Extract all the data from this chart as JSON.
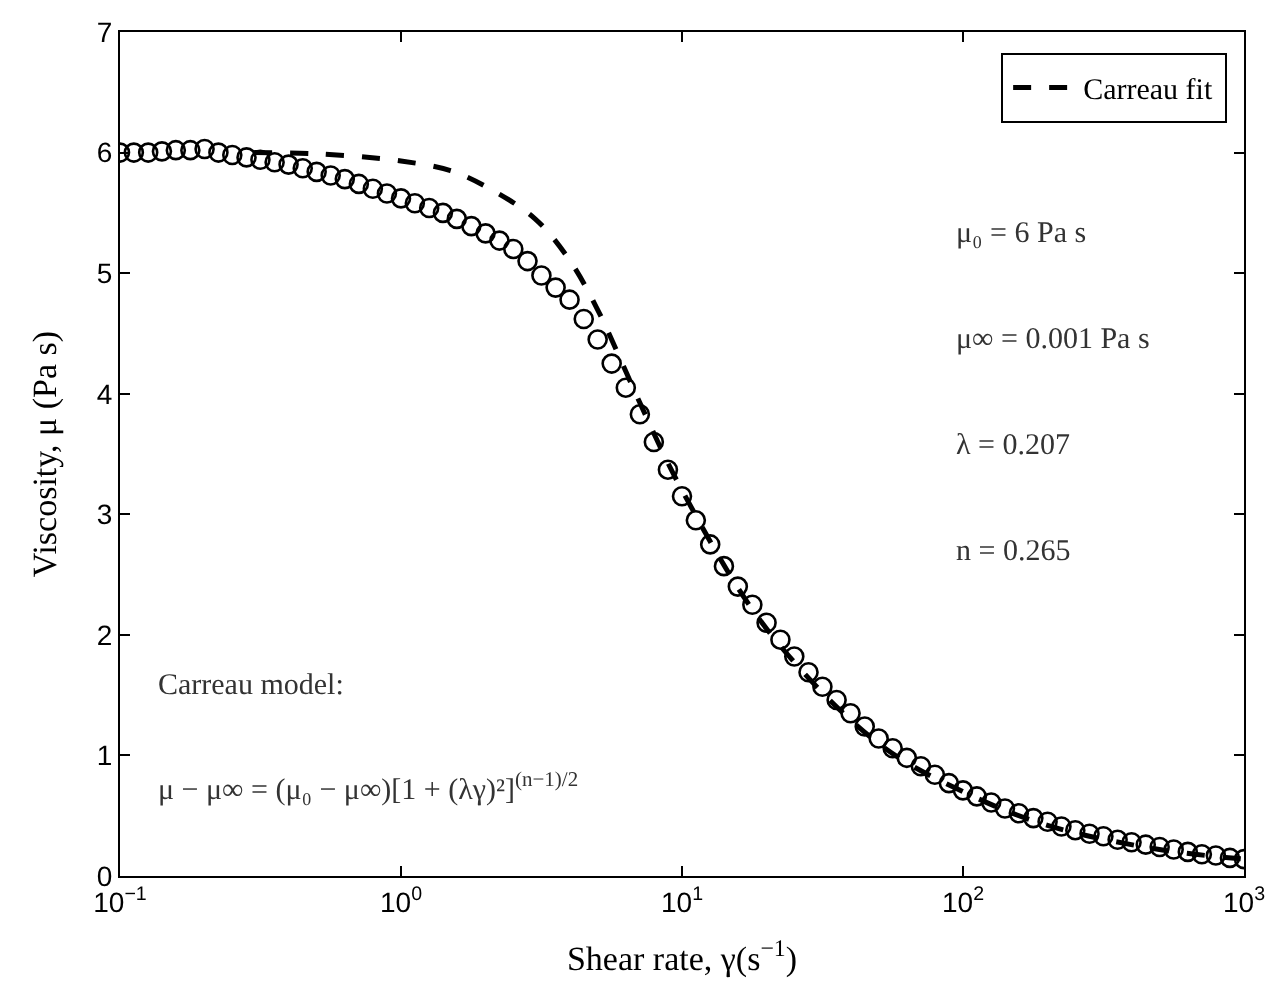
{
  "chart_data": {
    "type": "scatter",
    "xlabel": "Shear rate, γ(s$^{−1}$)",
    "ylabel": "Viscosity, μ (Pa s)",
    "log": "x",
    "xlim": [
      0.1,
      1000
    ],
    "xticks": [
      {
        "value": 0.1,
        "label": "10$^{−1}$"
      },
      {
        "value": 1,
        "label": "10$^{0}$"
      },
      {
        "value": 10,
        "label": "10$^{1}$"
      },
      {
        "value": 100,
        "label": "10$^{2}$"
      },
      {
        "value": 1000,
        "label": "10$^{3}$"
      }
    ],
    "ylim": [
      0,
      7
    ],
    "yticks": [
      0,
      1,
      2,
      3,
      4,
      5,
      6,
      7
    ],
    "legend": "top right",
    "series": [
      {
        "marker": "circle",
        "color": "#000000",
        "x": [
          0.1,
          0.112,
          0.126,
          0.141,
          0.158,
          0.178,
          0.2,
          0.224,
          0.251,
          0.282,
          0.316,
          0.355,
          0.398,
          0.447,
          0.501,
          0.562,
          0.631,
          0.708,
          0.794,
          0.891,
          1,
          1.12,
          1.26,
          1.41,
          1.58,
          1.78,
          2,
          2.24,
          2.51,
          2.82,
          3.16,
          3.55,
          3.98,
          4.47,
          5.01,
          5.62,
          6.31,
          7.08,
          7.94,
          8.91,
          10,
          11.2,
          12.6,
          14.1,
          15.8,
          17.8,
          20,
          22.4,
          25.1,
          28.2,
          31.6,
          35.5,
          39.8,
          44.7,
          50.1,
          56.2,
          63.1,
          70.8,
          79.4,
          89.1,
          100,
          112,
          126,
          141,
          158,
          178,
          200,
          224,
          251,
          282,
          316,
          355,
          398,
          447,
          501,
          562,
          631,
          708,
          794,
          891,
          1000
        ],
        "values": [
          6.0,
          6.0,
          6.0,
          6.01,
          6.02,
          6.02,
          6.03,
          6.0,
          5.98,
          5.96,
          5.94,
          5.92,
          5.9,
          5.87,
          5.84,
          5.81,
          5.78,
          5.74,
          5.7,
          5.66,
          5.62,
          5.58,
          5.54,
          5.5,
          5.45,
          5.39,
          5.33,
          5.27,
          5.2,
          5.1,
          4.98,
          4.88,
          4.78,
          4.62,
          4.45,
          4.25,
          4.05,
          3.83,
          3.6,
          3.37,
          3.15,
          2.95,
          2.75,
          2.57,
          2.4,
          2.25,
          2.1,
          1.96,
          1.82,
          1.69,
          1.57,
          1.46,
          1.35,
          1.24,
          1.14,
          1.06,
          0.98,
          0.91,
          0.84,
          0.77,
          0.71,
          0.66,
          0.61,
          0.56,
          0.52,
          0.48,
          0.45,
          0.41,
          0.38,
          0.35,
          0.33,
          0.3,
          0.28,
          0.26,
          0.24,
          0.22,
          0.2,
          0.18,
          0.17,
          0.15,
          0.14
        ]
      },
      {
        "type": "line",
        "name": "Carreau fit",
        "line_style": "dashed",
        "color": "#000000",
        "x": [
          0.3,
          0.5,
          1,
          1.5,
          2,
          3,
          4,
          5,
          6,
          7,
          10,
          20,
          50,
          100,
          200,
          500,
          1000
        ],
        "values": [
          6.0,
          5.99,
          5.93,
          5.85,
          5.72,
          5.45,
          5.1,
          4.7,
          4.3,
          3.95,
          3.2,
          2.05,
          1.1,
          0.7,
          0.42,
          0.22,
          0.14
        ]
      }
    ],
    "annotations": [
      "μ₀ = 6 Pa s",
      "μ∞ = 0.001 Pa s",
      "λ = 0.207",
      "n = 0.265",
      "Carreau model:",
      "μ − μ∞ = (μ₀ − μ∞)[1 + (λγ)²]$^{(n−1)/2}$"
    ]
  }
}
